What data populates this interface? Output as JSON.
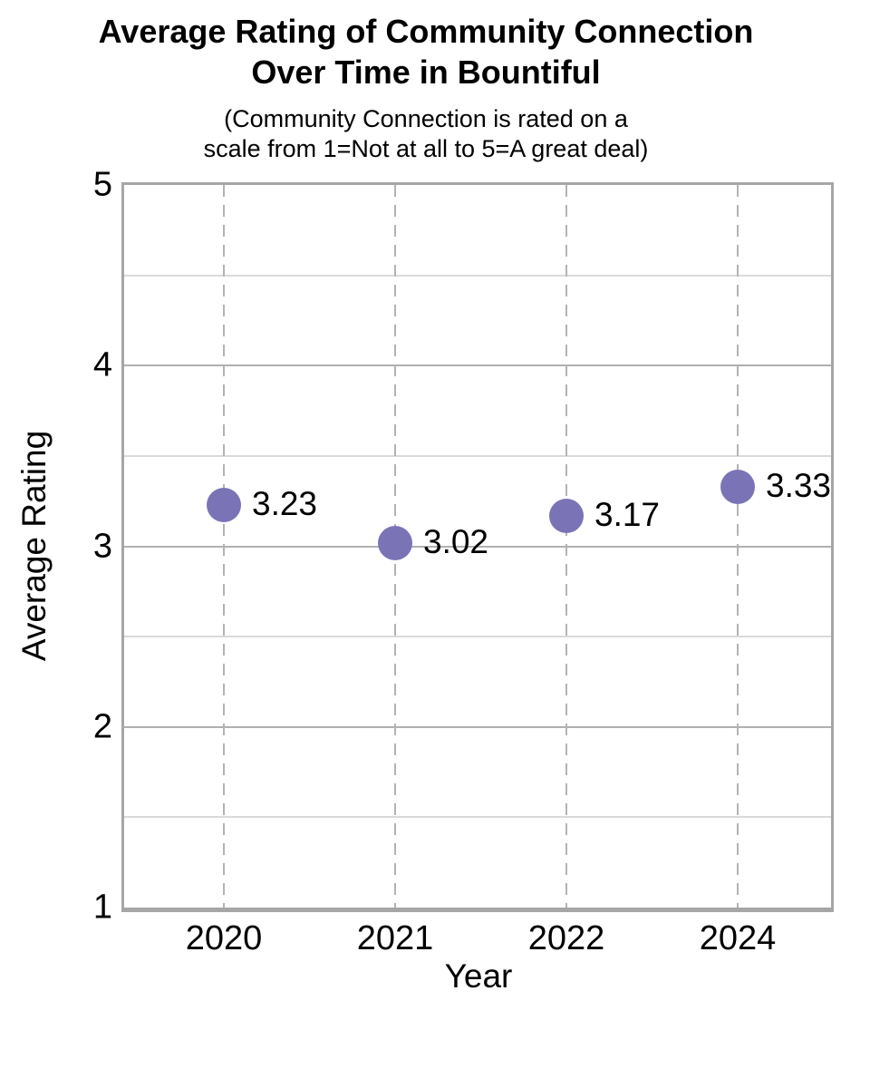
{
  "header": {
    "title_line1": "Average Rating of Community Connection",
    "title_line2": "Over Time in Bountiful",
    "subtitle_line1": "(Community Connection is rated on a",
    "subtitle_line2": "scale from 1=Not at all to 5=A great deal)"
  },
  "axes": {
    "x_title": "Year",
    "y_title": "Average Rating"
  },
  "chart_data": {
    "type": "scatter",
    "title": "Average Rating of Community Connection Over Time in Bountiful",
    "subtitle": "(Community Connection is rated on a scale from 1=Not at all to 5=A great deal)",
    "xlabel": "Year",
    "ylabel": "Average Rating",
    "categories": [
      "2020",
      "2021",
      "2022",
      "2024"
    ],
    "values": [
      3.23,
      3.02,
      3.17,
      3.33
    ],
    "point_labels": [
      "3.23",
      "3.02",
      "3.17",
      "3.33"
    ],
    "ylim": [
      1,
      5
    ],
    "y_major_ticks": [
      1,
      2,
      3,
      4,
      5
    ],
    "y_minor_step": 0.5,
    "legend_position": "none",
    "grid": {
      "horizontal_major": "solid",
      "horizontal_minor": "solid-light",
      "vertical": "dashed-at-categories"
    },
    "colors": {
      "marker": "#7a74b6",
      "grid_major": "#b0b0b0",
      "grid_minor": "#dadada",
      "grid_dashed": "#b3b3b3",
      "plot_border": "#a6a6a6",
      "text": "#000000"
    }
  }
}
